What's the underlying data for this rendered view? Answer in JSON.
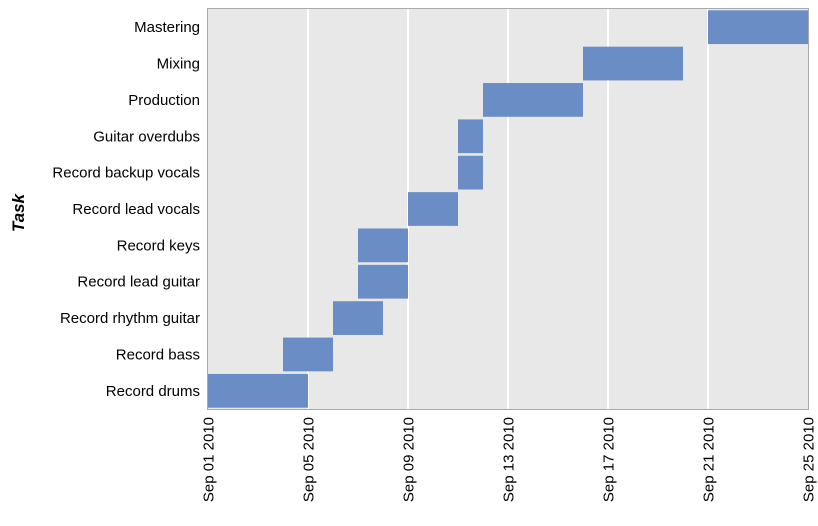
{
  "chart_data": {
    "type": "gantt",
    "title": "",
    "xlabel": "",
    "ylabel": "Task",
    "xlim": [
      "2010-09-01",
      "2010-09-25"
    ],
    "x_ticks": [
      "Sep 01 2010",
      "Sep 05 2010",
      "Sep 09 2010",
      "Sep 13 2010",
      "Sep 17 2010",
      "Sep 21 2010",
      "Sep 25 2010"
    ],
    "grid": true,
    "tasks": [
      {
        "name": "Record drums",
        "start": "2010-09-01",
        "end": "2010-09-05"
      },
      {
        "name": "Record bass",
        "start": "2010-09-04",
        "end": "2010-09-06"
      },
      {
        "name": "Record rhythm guitar",
        "start": "2010-09-06",
        "end": "2010-09-08"
      },
      {
        "name": "Record lead guitar",
        "start": "2010-09-07",
        "end": "2010-09-09"
      },
      {
        "name": "Record keys",
        "start": "2010-09-07",
        "end": "2010-09-09"
      },
      {
        "name": "Record lead vocals",
        "start": "2010-09-09",
        "end": "2010-09-11"
      },
      {
        "name": "Record backup vocals",
        "start": "2010-09-11",
        "end": "2010-09-12"
      },
      {
        "name": "Guitar overdubs",
        "start": "2010-09-11",
        "end": "2010-09-12"
      },
      {
        "name": "Production",
        "start": "2010-09-12",
        "end": "2010-09-16"
      },
      {
        "name": "Mixing",
        "start": "2010-09-16",
        "end": "2010-09-20"
      },
      {
        "name": "Mastering",
        "start": "2010-09-21",
        "end": "2010-09-25"
      }
    ],
    "colors": {
      "bar": "#6a8dc5",
      "plot_background": "#e8e8e8",
      "grid": "#ffffff",
      "frame": "#aaaaaa"
    }
  }
}
